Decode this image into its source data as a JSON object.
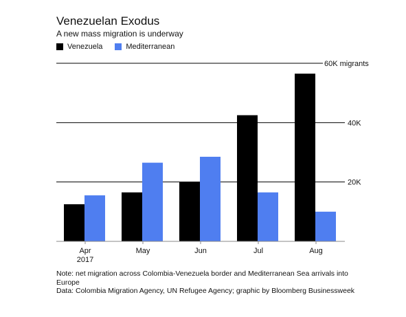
{
  "header": {
    "title": "Venezuelan Exodus",
    "subtitle": "A new mass migration is underway"
  },
  "colors": {
    "venezuela": "#000000",
    "mediterranean": "#4f7ef0",
    "grid": "#000000",
    "axis": "#888888"
  },
  "chart_data": {
    "type": "bar",
    "categories": [
      "Apr",
      "May",
      "Jun",
      "Jul",
      "Aug"
    ],
    "category_sublabels": [
      "2017",
      "",
      "",
      "",
      ""
    ],
    "series": [
      {
        "name": "Venezuela",
        "values": [
          12500,
          16500,
          20000,
          42500,
          56500
        ]
      },
      {
        "name": "Mediterranean",
        "values": [
          15500,
          26500,
          28500,
          16500,
          10000
        ]
      }
    ],
    "ylim": [
      0,
      60000
    ],
    "yticks": [
      20000,
      40000,
      60000
    ],
    "ytick_labels": [
      "20K",
      "40K",
      "60K migrants"
    ],
    "grid": true,
    "legend_position": "top-left"
  },
  "footer": {
    "note": "Note: net migration across Colombia-Venezuela border and Mediterranean Sea arrivals into Europe",
    "source": "Data: Colombia Migration Agency, UN Refugee Agency; graphic by Bloomberg Businessweek"
  }
}
